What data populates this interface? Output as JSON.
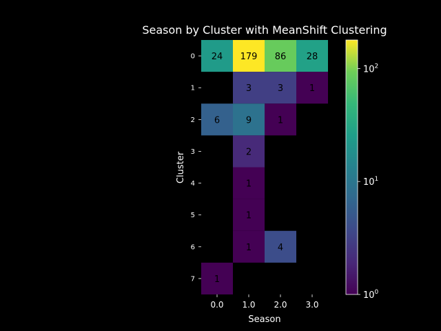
{
  "chart_data": {
    "type": "heatmap",
    "title": "Season by Cluster with MeanShift Clustering",
    "xlabel": "Season",
    "ylabel": "Cluster",
    "x_categories": [
      "0.0",
      "1.0",
      "2.0",
      "3.0"
    ],
    "y_categories": [
      "0",
      "1",
      "2",
      "3",
      "4",
      "5",
      "6",
      "7"
    ],
    "values": [
      [
        24,
        179,
        86,
        28
      ],
      [
        null,
        3,
        3,
        1
      ],
      [
        6,
        9,
        1,
        null
      ],
      [
        null,
        2,
        null,
        null
      ],
      [
        null,
        1,
        null,
        null
      ],
      [
        null,
        1,
        null,
        null
      ],
      [
        null,
        1,
        4,
        null
      ],
      [
        1,
        null,
        null,
        null
      ]
    ],
    "color_scale": "log",
    "colormap": "viridis",
    "colorbar_range": [
      1,
      179
    ],
    "colorbar_ticks": [
      {
        "value": 1,
        "base": "10",
        "exp": "0"
      },
      {
        "value": 10,
        "base": "10",
        "exp": "1"
      },
      {
        "value": 100,
        "base": "10",
        "exp": "2"
      }
    ],
    "background": "#000000",
    "text_color": "#ffffff",
    "annotation_color": "#000000"
  }
}
